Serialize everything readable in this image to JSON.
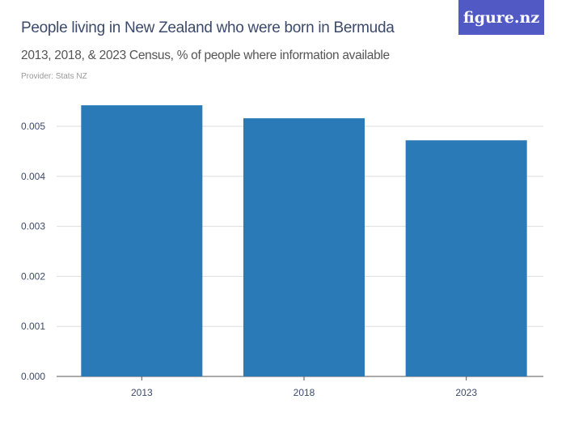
{
  "title": "People living in New Zealand who were born in Bermuda",
  "subtitle": "2013, 2018, & 2023 Census, % of people where information available",
  "provider": "Provider: Stats NZ",
  "logo": "figure.nz",
  "chart_data": {
    "type": "bar",
    "categories": [
      "2013",
      "2018",
      "2023"
    ],
    "values": [
      0.00542,
      0.00516,
      0.00472
    ],
    "ylim": [
      0,
      0.005
    ],
    "yticks": [
      "0.000",
      "0.001",
      "0.002",
      "0.003",
      "0.004",
      "0.005"
    ],
    "grid": true,
    "color": "#2a7ab7"
  }
}
